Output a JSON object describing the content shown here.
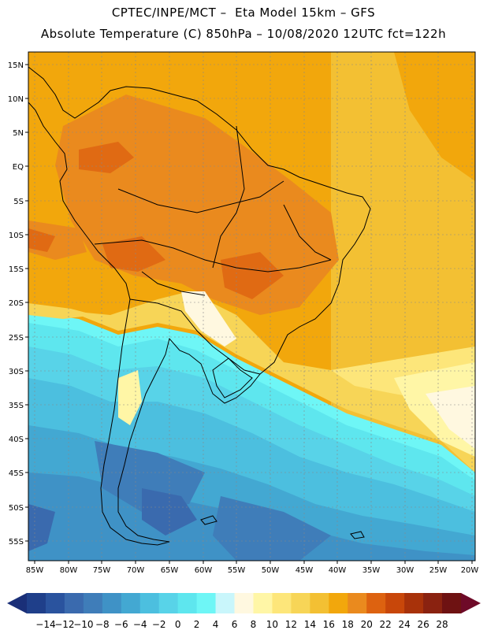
{
  "header": {
    "line1": "CPTEC/INPE/MCT –  Eta Model 15km – GFS",
    "line2": "Absolute Temperature (C) 850hPa – 10/08/2020 12UTC fct=122h"
  },
  "map": {
    "lat_labels": [
      "15N",
      "10N",
      "5N",
      "EQ",
      "5S",
      "10S",
      "15S",
      "20S",
      "25S",
      "30S",
      "35S",
      "40S",
      "45S",
      "50S",
      "55S"
    ],
    "lon_labels": [
      "85W",
      "80W",
      "75W",
      "70W",
      "65W",
      "60W",
      "55W",
      "50W",
      "45W",
      "40W",
      "35W",
      "30W",
      "25W",
      "20W"
    ]
  },
  "colorbar": {
    "ticks": [
      "-14",
      "-12",
      "-10",
      "-8",
      "-6",
      "-4",
      "-2",
      "0",
      "2",
      "4",
      "6",
      "8",
      "10",
      "12",
      "14",
      "16",
      "18",
      "20",
      "22",
      "24",
      "26",
      "28"
    ],
    "colors": [
      "#1f3f8a",
      "#2a539e",
      "#3a6aae",
      "#3f7db9",
      "#3f92c6",
      "#43a8d2",
      "#4cbfdf",
      "#58d3e8",
      "#5ee6ee",
      "#6ef6f6",
      "#c9f6fb",
      "#fff8e0",
      "#fff6a6",
      "#fde67a",
      "#f7d557",
      "#f3c033",
      "#f2a70c",
      "#ea8a1e",
      "#dd6210",
      "#c8470a",
      "#a8320a",
      "#8a2210",
      "#6e1212"
    ],
    "left_arrow_color": "#1a2f78",
    "right_arrow_color": "#6e0a28"
  }
}
